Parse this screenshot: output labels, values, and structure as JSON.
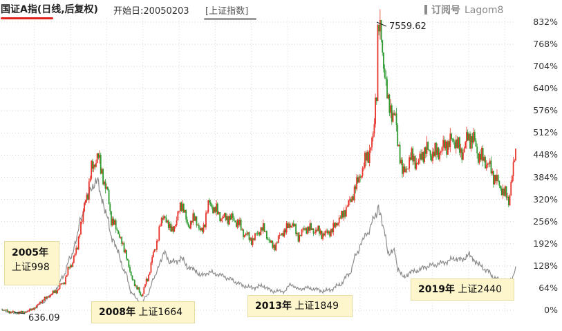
{
  "header": {
    "title": "国证A指(日线,后复权)",
    "start_label": "开始日:20050203",
    "reference_label": "[上证指数]",
    "brand_cn": "订阅号",
    "brand_en": "Lagom8"
  },
  "annotations": [
    {
      "year": "2005年",
      "text": "上证998"
    },
    {
      "year": "2008年",
      "text": "上证1664"
    },
    {
      "year": "2013年",
      "text": "上证1849"
    },
    {
      "year": "2019年",
      "text": "上证2440"
    }
  ],
  "extremes": {
    "high_label": "7559.62",
    "low_label": "636.09"
  },
  "colors": {
    "up": "#e8322a",
    "down": "#2e9b31",
    "reference": "#8c8c8c",
    "annotation_bg": "#fdf6cc",
    "title_underline": "#e0201c"
  },
  "chart_data": {
    "type": "line",
    "title": "国证A指(日线,后复权)",
    "subtitle": "开始日:20050203 [上证指数]",
    "ylabel": "",
    "y_unit": "percent change since start",
    "ylim": [
      0,
      832
    ],
    "y_ticks": [
      "832%",
      "768%",
      "704%",
      "640%",
      "576%",
      "512%",
      "448%",
      "384%",
      "320%",
      "256%",
      "192%",
      "128%",
      "64%",
      "0%"
    ],
    "y_tick_values": [
      832,
      768,
      704,
      640,
      576,
      512,
      448,
      384,
      320,
      256,
      192,
      128,
      64,
      0
    ],
    "x_range": [
      2005.09,
      2019.3
    ],
    "grid": true,
    "legend": "none",
    "series": [
      {
        "name": "国证A指",
        "style": "candlestick",
        "x": [
          2005.09,
          2005.4,
          2005.6,
          2005.8,
          2006.0,
          2006.2,
          2006.4,
          2006.6,
          2006.8,
          2007.0,
          2007.15,
          2007.3,
          2007.45,
          2007.6,
          2007.75,
          2007.85,
          2008.0,
          2008.15,
          2008.3,
          2008.5,
          2008.7,
          2008.85,
          2008.95,
          2009.1,
          2009.3,
          2009.5,
          2009.6,
          2009.75,
          2009.9,
          2010.05,
          2010.25,
          2010.45,
          2010.6,
          2010.85,
          2011.0,
          2011.2,
          2011.4,
          2011.6,
          2011.8,
          2012.0,
          2012.3,
          2012.6,
          2012.9,
          2013.1,
          2013.3,
          2013.5,
          2013.8,
          2014.0,
          2014.2,
          2014.45,
          2014.7,
          2014.9,
          2015.05,
          2015.2,
          2015.35,
          2015.45,
          2015.5,
          2015.56,
          2015.65,
          2015.8,
          2015.95,
          2016.05,
          2016.2,
          2016.4,
          2016.6,
          2016.8,
          2017.0,
          2017.2,
          2017.4,
          2017.6,
          2017.8,
          2018.0,
          2018.1,
          2018.3,
          2018.5,
          2018.7,
          2018.9,
          2019.0,
          2019.1,
          2019.2,
          2019.3
        ],
        "y": [
          1,
          -6,
          -8,
          -5,
          5,
          25,
          40,
          55,
          80,
          130,
          170,
          260,
          340,
          420,
          455,
          410,
          350,
          260,
          230,
          170,
          90,
          60,
          40,
          80,
          160,
          245,
          270,
          230,
          245,
          310,
          250,
          270,
          230,
          315,
          295,
          270,
          270,
          255,
          220,
          200,
          230,
          180,
          225,
          250,
          215,
          240,
          235,
          225,
          235,
          270,
          310,
          360,
          400,
          440,
          480,
          620,
          820,
          780,
          700,
          570,
          560,
          470,
          390,
          440,
          430,
          470,
          460,
          470,
          490,
          500,
          460,
          500,
          495,
          440,
          420,
          380,
          345,
          330,
          310,
          380,
          450
        ]
      },
      {
        "name": "上证指数",
        "style": "line",
        "x": [
          2005.09,
          2005.4,
          2005.6,
          2005.8,
          2006.0,
          2006.2,
          2006.4,
          2006.6,
          2006.8,
          2007.0,
          2007.15,
          2007.3,
          2007.45,
          2007.6,
          2007.75,
          2007.85,
          2008.0,
          2008.15,
          2008.3,
          2008.5,
          2008.7,
          2008.85,
          2008.95,
          2009.1,
          2009.3,
          2009.5,
          2009.6,
          2009.75,
          2009.9,
          2010.05,
          2010.25,
          2010.45,
          2010.6,
          2010.85,
          2011.0,
          2011.2,
          2011.4,
          2011.6,
          2011.8,
          2012.0,
          2012.3,
          2012.6,
          2012.9,
          2013.1,
          2013.3,
          2013.5,
          2013.8,
          2014.0,
          2014.2,
          2014.45,
          2014.7,
          2014.9,
          2015.05,
          2015.2,
          2015.35,
          2015.45,
          2015.5,
          2015.56,
          2015.65,
          2015.8,
          2015.95,
          2016.05,
          2016.2,
          2016.4,
          2016.6,
          2016.8,
          2017.0,
          2017.2,
          2017.4,
          2017.6,
          2017.8,
          2018.0,
          2018.1,
          2018.3,
          2018.5,
          2018.7,
          2018.9,
          2019.0,
          2019.1,
          2019.2,
          2019.3
        ],
        "y": [
          1,
          -8,
          -7,
          -3,
          5,
          20,
          38,
          60,
          100,
          150,
          200,
          270,
          320,
          360,
          370,
          330,
          270,
          210,
          170,
          110,
          50,
          30,
          20,
          40,
          90,
          145,
          165,
          140,
          140,
          150,
          125,
          115,
          100,
          110,
          105,
          100,
          90,
          80,
          70,
          65,
          70,
          55,
          55,
          75,
          60,
          65,
          60,
          55,
          60,
          75,
          105,
          160,
          200,
          220,
          260,
          270,
          305,
          280,
          230,
          165,
          170,
          120,
          95,
          110,
          115,
          125,
          130,
          135,
          140,
          150,
          145,
          160,
          150,
          130,
          115,
          95,
          85,
          75,
          80,
          95,
          120
        ]
      }
    ]
  }
}
